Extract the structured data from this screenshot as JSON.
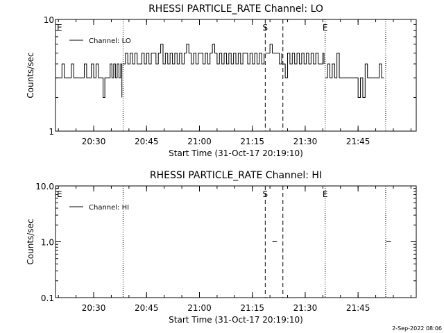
{
  "footer_timestamp": "2-Sep-2022 08:06",
  "chart_data": [
    {
      "type": "line",
      "title": "RHESSI PARTICLE_RATE Channel: LO",
      "xlabel": "Start Time (31-Oct-17 20:19:10)",
      "ylabel": "Counts/sec",
      "y_scale": "log",
      "ylim": [
        1,
        10
      ],
      "y_ticks": [
        1,
        10
      ],
      "y_tick_labels": [
        "1",
        "10"
      ],
      "xlim": [
        "20:19:10",
        "22:01:30"
      ],
      "x_ticks": [
        "20:30",
        "20:45",
        "21:00",
        "21:15",
        "21:30",
        "21:45"
      ],
      "x_tick_labels": [
        "20:30",
        "20:45",
        "21:00",
        "21:15",
        "21:30",
        "21:45"
      ],
      "legend": {
        "placement": "top-left",
        "entries": [
          "Channel: LO"
        ]
      },
      "markers": [
        {
          "time": "20:19:10",
          "style": "dotted",
          "label": "E"
        },
        {
          "time": "20:38:20",
          "style": "dotted",
          "label": ""
        },
        {
          "time": "21:18:40",
          "style": "dashed",
          "label": "S"
        },
        {
          "time": "21:23:40",
          "style": "dashed",
          "label": ""
        },
        {
          "time": "21:35:40",
          "style": "dotted",
          "label": "E"
        },
        {
          "time": "21:52:50",
          "style": "dotted",
          "label": ""
        }
      ],
      "series": [
        {
          "name": "Channel: LO",
          "segments": [
            {
              "x": [
                "20:19:10",
                "20:20:10",
                "20:21:00",
                "20:21:40",
                "20:22:20",
                "20:23:00",
                "20:23:40",
                "20:24:20",
                "20:24:50",
                "20:25:30",
                "20:26:00",
                "20:26:40",
                "20:27:20",
                "20:28:00",
                "20:28:40",
                "20:29:20",
                "20:30:00",
                "20:30:40",
                "20:31:20",
                "20:32:00",
                "20:32:40",
                "20:33:10",
                "20:33:40",
                "20:34:10",
                "20:34:40",
                "20:35:10",
                "20:35:40",
                "20:36:10",
                "20:36:40",
                "20:37:10",
                "20:37:40",
                "20:38:00"
              ],
              "y": [
                3,
                3,
                4,
                3,
                3,
                3,
                4,
                3,
                3,
                3,
                3,
                3,
                4,
                3,
                3,
                4,
                3,
                4,
                3,
                3,
                2,
                3,
                3,
                3,
                4,
                3,
                4,
                3,
                4,
                3,
                4,
                2
              ]
            },
            {
              "x": [
                "20:38:20",
                "20:39:00",
                "20:39:40",
                "20:40:20",
                "20:41:00",
                "20:41:40",
                "20:42:20",
                "20:43:00",
                "20:43:40",
                "20:44:20",
                "20:45:00",
                "20:45:40",
                "20:46:20",
                "20:47:00",
                "20:47:40",
                "20:48:20",
                "20:49:00",
                "20:49:40",
                "20:50:20",
                "20:51:00",
                "20:51:40",
                "20:52:20",
                "20:53:00",
                "20:53:40",
                "20:54:20",
                "20:55:00",
                "20:55:40",
                "20:56:20",
                "20:57:00",
                "20:57:40",
                "20:58:20",
                "20:59:00",
                "20:59:40",
                "21:00:20",
                "21:01:00",
                "21:01:40",
                "21:02:20",
                "21:03:00",
                "21:03:40",
                "21:04:20",
                "21:05:00",
                "21:05:40",
                "21:06:20",
                "21:07:00",
                "21:07:40",
                "21:08:20",
                "21:09:00",
                "21:09:40",
                "21:10:20",
                "21:11:00",
                "21:11:40",
                "21:12:20",
                "21:13:00",
                "21:13:40",
                "21:14:20",
                "21:15:00",
                "21:15:40",
                "21:16:20",
                "21:17:00",
                "21:17:40",
                "21:18:20"
              ],
              "y": [
                4,
                5,
                4,
                5,
                4,
                5,
                4,
                4,
                5,
                4,
                5,
                4,
                5,
                5,
                4,
                5,
                6,
                4,
                5,
                4,
                5,
                4,
                5,
                4,
                5,
                4,
                5,
                6,
                5,
                4,
                5,
                4,
                5,
                5,
                4,
                5,
                4,
                5,
                6,
                5,
                4,
                5,
                4,
                5,
                4,
                5,
                4,
                5,
                4,
                5,
                4,
                5,
                5,
                4,
                5,
                4,
                5,
                4,
                5,
                4,
                5
              ]
            },
            {
              "x": [
                "21:18:40",
                "21:19:20",
                "21:20:00",
                "21:20:40",
                "21:21:20",
                "21:22:00",
                "21:22:40",
                "21:23:20"
              ],
              "y": [
                5,
                5,
                6,
                5,
                5,
                5,
                4,
                5
              ]
            },
            {
              "x": [
                "21:23:40",
                "21:24:20",
                "21:25:00",
                "21:25:40",
                "21:26:20",
                "21:27:00",
                "21:27:40",
                "21:28:20",
                "21:29:00",
                "21:29:40",
                "21:30:20",
                "21:31:00",
                "21:31:40",
                "21:32:20",
                "21:33:00",
                "21:33:40",
                "21:34:20",
                "21:35:00",
                "21:35:20"
              ],
              "y": [
                4,
                3,
                5,
                4,
                5,
                4,
                5,
                4,
                5,
                4,
                5,
                4,
                5,
                4,
                5,
                4,
                4,
                5,
                4
              ]
            },
            {
              "x": [
                "21:35:40",
                "21:36:20",
                "21:37:00",
                "21:37:40",
                "21:38:20",
                "21:39:00",
                "21:39:40",
                "21:40:20",
                "21:41:00",
                "21:41:40",
                "21:42:20",
                "21:43:00",
                "21:43:40",
                "21:44:20",
                "21:45:00",
                "21:45:40",
                "21:46:20",
                "21:47:00",
                "21:47:40",
                "21:48:20",
                "21:49:00",
                "21:49:40",
                "21:50:20",
                "21:51:00",
                "21:51:40",
                "21:52:20"
              ],
              "y": [
                3,
                4,
                3,
                4,
                3,
                5,
                3,
                3,
                3,
                3,
                3,
                3,
                3,
                3,
                2,
                3,
                2,
                4,
                3,
                3,
                3,
                3,
                3,
                4,
                3,
                3
              ]
            }
          ]
        }
      ]
    },
    {
      "type": "line",
      "title": "RHESSI PARTICLE_RATE Channel: HI",
      "xlabel": "Start Time (31-Oct-17 20:19:10)",
      "ylabel": "Counts/sec",
      "y_scale": "log",
      "ylim": [
        0.1,
        10
      ],
      "y_ticks": [
        0.1,
        1,
        10
      ],
      "y_tick_labels": [
        "0.1",
        "1.0",
        "10.0"
      ],
      "xlim": [
        "20:19:10",
        "22:01:30"
      ],
      "x_ticks": [
        "20:30",
        "20:45",
        "21:00",
        "21:15",
        "21:30",
        "21:45"
      ],
      "x_tick_labels": [
        "20:30",
        "20:45",
        "21:00",
        "21:15",
        "21:30",
        "21:45"
      ],
      "legend": {
        "placement": "top-left",
        "entries": [
          "Channel: HI"
        ]
      },
      "markers": [
        {
          "time": "20:19:10",
          "style": "dotted",
          "label": "E"
        },
        {
          "time": "20:38:20",
          "style": "dotted",
          "label": ""
        },
        {
          "time": "21:18:40",
          "style": "dashed",
          "label": "S"
        },
        {
          "time": "21:23:40",
          "style": "dashed",
          "label": ""
        },
        {
          "time": "21:35:40",
          "style": "dotted",
          "label": "E"
        },
        {
          "time": "21:52:50",
          "style": "dotted",
          "label": ""
        }
      ],
      "series": [
        {
          "name": "Channel: HI",
          "segments": [
            {
              "x": [
                "21:20:40",
                "21:22:00"
              ],
              "y": [
                1,
                1
              ]
            },
            {
              "x": [
                "21:53:00",
                "21:54:20"
              ],
              "y": [
                1,
                1
              ]
            }
          ]
        }
      ]
    }
  ]
}
